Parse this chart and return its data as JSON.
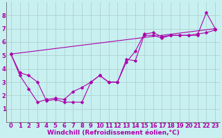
{
  "background_color": "#c8f0f0",
  "grid_color": "#aacccc",
  "line_color": "#aa00aa",
  "xlim": [
    -0.5,
    23.5
  ],
  "ylim": [
    0,
    9
  ],
  "xticks": [
    0,
    1,
    2,
    3,
    4,
    5,
    6,
    7,
    8,
    9,
    10,
    11,
    12,
    13,
    14,
    15,
    16,
    17,
    18,
    19,
    20,
    21,
    22,
    23
  ],
  "yticks": [
    1,
    2,
    3,
    4,
    5,
    6,
    7,
    8
  ],
  "xlabel": "Windchill (Refroidissement éolien,°C)",
  "series1_x": [
    0,
    1,
    2,
    3,
    4,
    5,
    6,
    7,
    8,
    9,
    10,
    11,
    12,
    13,
    14,
    15,
    16,
    17,
    18,
    19,
    20,
    21,
    22,
    23
  ],
  "series1_y": [
    5.1,
    3.7,
    3.5,
    3.0,
    1.6,
    1.7,
    1.5,
    1.5,
    1.5,
    3.0,
    3.5,
    3.0,
    3.0,
    4.5,
    5.3,
    6.6,
    6.7,
    6.4,
    6.5,
    6.5,
    6.5,
    6.6,
    6.7,
    6.9
  ],
  "series2_x": [
    0,
    1,
    2,
    3,
    4,
    5,
    6,
    7,
    8,
    9,
    10,
    11,
    12,
    13,
    14,
    15,
    16,
    17,
    18,
    19,
    20,
    21,
    22,
    23
  ],
  "series2_y": [
    5.1,
    3.5,
    2.5,
    1.5,
    1.7,
    1.8,
    1.7,
    2.3,
    2.6,
    3.0,
    3.5,
    3.0,
    3.0,
    4.7,
    4.6,
    6.5,
    6.5,
    6.3,
    6.5,
    6.5,
    6.5,
    6.5,
    8.2,
    7.0
  ],
  "series3_x": [
    0,
    23
  ],
  "series3_y": [
    5.1,
    7.0
  ],
  "marker_size": 2.5,
  "lw": 0.8,
  "font_size_label": 6.5,
  "font_size_tick": 6
}
